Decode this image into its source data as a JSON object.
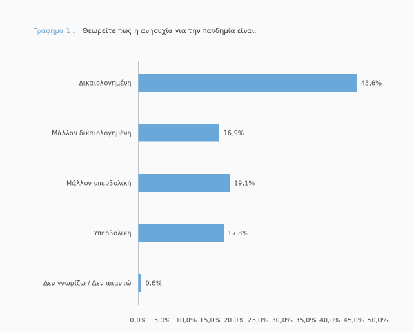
{
  "title_prefix": "Γράφημα 1 :",
  "title": "Θεωρείτε πως η ανησυχία για την πανδημία είναι:",
  "colors": {
    "bar": "#6aa8d9",
    "axis": "#b9c4cf",
    "background": "#fafafa"
  },
  "chart_data": {
    "type": "bar",
    "orientation": "horizontal",
    "categories": [
      "Δικαιολογημένη",
      "Μάλλον δικαιολογημένη",
      "Μάλλον υπερβολική",
      "Υπερβολική",
      "Δεν γνωρίζω / Δεν απαντώ"
    ],
    "values": [
      45.6,
      16.9,
      19.1,
      17.8,
      0.6
    ],
    "value_labels": [
      "45,6%",
      "16,9%",
      "19,1%",
      "17,8%",
      "0,6%"
    ],
    "xlim": [
      0,
      50
    ],
    "xticks": [
      0,
      5,
      10,
      15,
      20,
      25,
      30,
      35,
      40,
      45,
      50
    ],
    "xtick_labels": [
      "0,0%",
      "5,0%",
      "10,0%",
      "15,0%",
      "20,0%",
      "25,0%",
      "30,0%",
      "35,0%",
      "40,0%",
      "45,0%",
      "50,0%"
    ],
    "grid": false,
    "legend": "none"
  }
}
